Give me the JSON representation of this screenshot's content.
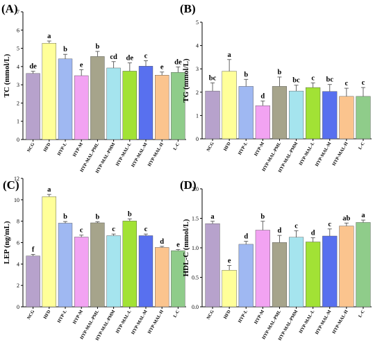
{
  "chart_data": [
    {
      "type": "bar",
      "panel_label": "(A)",
      "ylabel": "TC (mmol/L)",
      "ylim": [
        0,
        7
      ],
      "yticks": [
        "0",
        "1",
        "2",
        "3",
        "4",
        "5",
        "6",
        "7"
      ],
      "categories": [
        "NCG",
        "HFD",
        "HYP-L",
        "HYP-M",
        "HYP-MAL-PML",
        "HYP-MAL-PMM",
        "HYP-MAL-L",
        "HYP-MAL-M",
        "HYP-MAL-H",
        "L-C"
      ],
      "values": [
        3.62,
        5.28,
        4.42,
        3.5,
        4.55,
        3.92,
        3.75,
        4.02,
        3.53,
        3.68
      ],
      "errors": [
        0.12,
        0.12,
        0.25,
        0.33,
        0.28,
        0.35,
        0.45,
        0.3,
        0.17,
        0.3
      ],
      "significance": [
        "de",
        "a",
        "b",
        "e",
        "b",
        "cd",
        "de",
        "c",
        "e",
        "de"
      ]
    },
    {
      "type": "bar",
      "panel_label": "(B)",
      "ylabel": "TG (mmol/L)",
      "ylim": [
        0,
        5
      ],
      "yticks": [
        "0",
        "1",
        "2",
        "3",
        "4",
        "5"
      ],
      "categories": [
        "NCG",
        "HFD",
        "HYP-L",
        "HYP-M",
        "HYP-MAL-PML",
        "HYP-MAL-PMM",
        "HYP-MAL-L",
        "HYP-MAL-M",
        "HYP-MAL-H",
        "L-C"
      ],
      "values": [
        2.05,
        2.9,
        2.25,
        1.42,
        2.25,
        2.05,
        2.2,
        2.03,
        1.82,
        1.82
      ],
      "errors": [
        0.35,
        0.5,
        0.3,
        0.2,
        0.4,
        0.25,
        0.2,
        0.3,
        0.35,
        0.38
      ],
      "significance": [
        "bc",
        "a",
        "b",
        "d",
        "b",
        "bc",
        "c",
        "bc",
        "c",
        "c"
      ]
    },
    {
      "type": "bar",
      "panel_label": "(C)",
      "ylabel": "LEP (ng/mL)",
      "ylim": [
        0,
        12
      ],
      "yticks": [
        "0",
        "2",
        "4",
        "6",
        "8",
        "10",
        "12"
      ],
      "categories": [
        "NCG",
        "HFD",
        "HYP-L",
        "HYP-M",
        "HYP-MAL-PML",
        "HYP-MAL-PMM",
        "HYP-MAL-L",
        "HYP-MAL-M",
        "HYP-MAL-H",
        "L-C"
      ],
      "values": [
        4.75,
        10.3,
        7.82,
        6.52,
        7.85,
        6.65,
        8.02,
        6.65,
        5.55,
        5.25
      ],
      "errors": [
        0.15,
        0.2,
        0.15,
        0.18,
        0.1,
        0.15,
        0.2,
        0.15,
        0.1,
        0.1
      ],
      "significance": [
        "f",
        "a",
        "b",
        "c",
        "b",
        "c",
        "b",
        "c",
        "d",
        "e"
      ]
    },
    {
      "type": "bar",
      "panel_label": "(D)",
      "ylabel": "HDL-C (mmol/L)",
      "ylim": [
        0,
        2.0
      ],
      "yticks": [
        "0.0",
        "0.5",
        "1.0",
        "1.5",
        "2.0"
      ],
      "categories": [
        "NCG",
        "HFD",
        "HYP-L",
        "HYP-M",
        "HYP-MAL-PML",
        "HYP-MAL-PMM",
        "HYP-MAL-L",
        "HYP-MAL-M",
        "HYP-MAL-H",
        "L-C"
      ],
      "values": [
        1.41,
        0.62,
        1.06,
        1.3,
        1.09,
        1.18,
        1.1,
        1.2,
        1.37,
        1.43
      ],
      "errors": [
        0.04,
        0.08,
        0.05,
        0.15,
        0.12,
        0.11,
        0.07,
        0.12,
        0.05,
        0.04
      ],
      "significance": [
        "a",
        "e",
        "d",
        "b",
        "d",
        "c",
        "d",
        "c",
        "ab",
        "a"
      ]
    }
  ],
  "colors": {
    "bars": [
      "#b7a2cc",
      "#ffff99",
      "#9fb8f2",
      "#f2a3f2",
      "#a6a48b",
      "#a5e4ee",
      "#a2e235",
      "#5870ef",
      "#fbc48e",
      "#8fcc8a"
    ],
    "axis": "#000000"
  }
}
